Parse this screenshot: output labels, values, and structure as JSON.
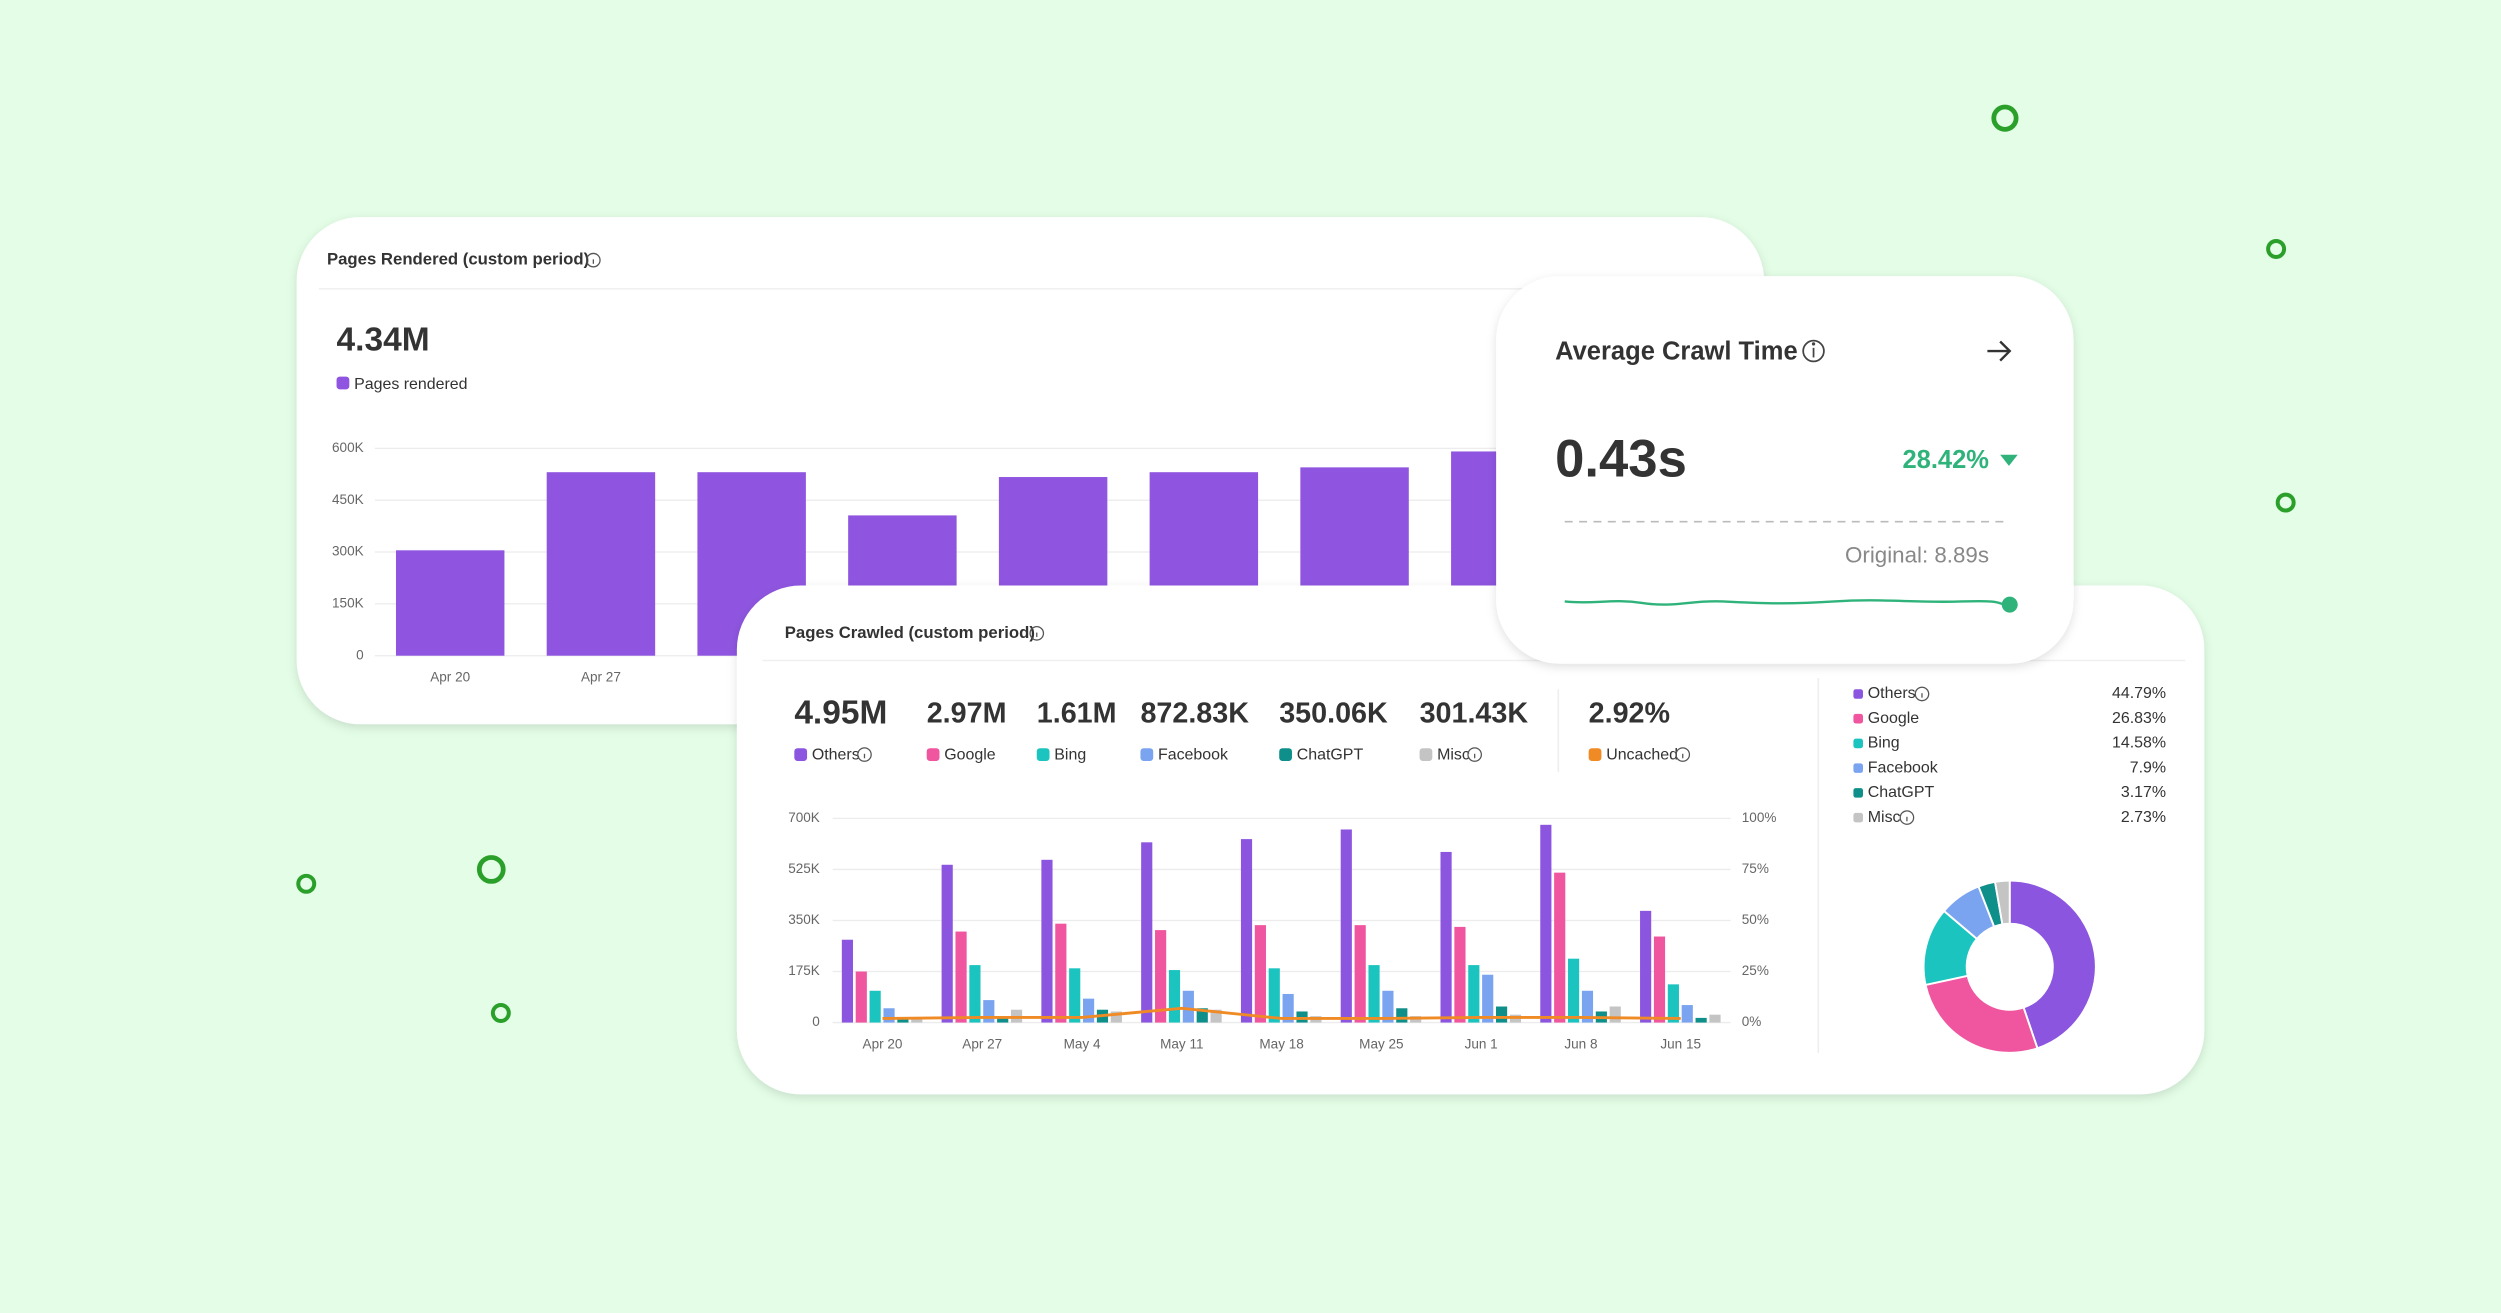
{
  "chart_data": [
    {
      "type": "bar",
      "title": "Pages Rendered (custom period)",
      "total": "4.34M",
      "legend": "Pages rendered",
      "color": "#8f55e0",
      "categories": [
        "Apr 20",
        "Apr 27",
        null,
        null,
        null,
        null,
        null,
        null
      ],
      "values": [
        305000,
        531000,
        531000,
        406000,
        517000,
        531000,
        545000,
        591000
      ],
      "ylim": [
        0,
        600000
      ],
      "yticks": [
        0,
        {
          "value": 150000,
          "label": "150K"
        },
        {
          "value": 300000,
          "label": "300K"
        },
        {
          "value": 450000,
          "label": "450K"
        },
        {
          "value": 600000,
          "label": "600K"
        }
      ],
      "grid": true
    },
    {
      "type": "combo",
      "title": "Pages Crawled (custom period)",
      "categories": [
        "Apr 20",
        "Apr 27",
        "May 4",
        "May 11",
        "May 18",
        "May 25",
        "Jun 1",
        "Jun 8",
        "Jun 15"
      ],
      "series": [
        {
          "name": "Others",
          "total": "4.95M",
          "color": "#8b55e0",
          "values": [
            284000,
            541000,
            558000,
            618000,
            629000,
            662000,
            585000,
            678000,
            383000
          ]
        },
        {
          "name": "Google",
          "total": "2.97M",
          "color": "#f0559f",
          "values": [
            175000,
            312000,
            339000,
            317000,
            334000,
            334000,
            328000,
            514000,
            295000
          ]
        },
        {
          "name": "Bing",
          "total": "1.61M",
          "color": "#1cc4c0",
          "values": [
            109000,
            197000,
            186000,
            180000,
            186000,
            197000,
            197000,
            219000,
            131000
          ]
        },
        {
          "name": "Facebook",
          "total": "872.83K",
          "color": "#7ba4f0",
          "values": [
            49000,
            77000,
            82000,
            109000,
            98000,
            109000,
            164000,
            109000,
            60000
          ]
        },
        {
          "name": "ChatGPT",
          "total": "350.06K",
          "color": "#0e8f8a",
          "values": [
            16000,
            22000,
            44000,
            49000,
            38000,
            49000,
            55000,
            38000,
            16000
          ]
        },
        {
          "name": "Misc",
          "total": "301.43K",
          "color": "#c4c4c4",
          "values": [
            11000,
            44000,
            38000,
            44000,
            22000,
            22000,
            27000,
            55000,
            27000
          ]
        },
        {
          "name": "Uncached",
          "total": "2.92%",
          "color": "#f08a24",
          "axis": "y2",
          "values": [
            2,
            2.5,
            2.5,
            7,
            2,
            2,
            2.5,
            2.5,
            2
          ]
        }
      ],
      "ylim": [
        0,
        700000
      ],
      "yticks": [
        0,
        {
          "value": 175000,
          "label": "175K"
        },
        {
          "value": 350000,
          "label": "350K"
        },
        {
          "value": 525000,
          "label": "525K"
        },
        {
          "value": 700000,
          "label": "700K"
        }
      ],
      "y2lim": [
        0,
        100
      ],
      "y2ticks": [
        {
          "value": 0,
          "label": "0%"
        },
        {
          "value": 25,
          "label": "25%"
        },
        {
          "value": 50,
          "label": "50%"
        },
        {
          "value": 75,
          "label": "75%"
        },
        {
          "value": 100,
          "label": "100%"
        }
      ],
      "grid": true
    },
    {
      "type": "donut",
      "categories": [
        "Others",
        "Google",
        "Bing",
        "Facebook",
        "ChatGPT",
        "Misc"
      ],
      "values": [
        44.79,
        26.83,
        14.58,
        7.9,
        3.17,
        2.73
      ],
      "value_labels": [
        "44.79%",
        "26.83%",
        "14.58%",
        "7.9%",
        "3.17%",
        "2.73%"
      ],
      "colors": [
        "#8b55e0",
        "#f0559f",
        "#1cc4c0",
        "#7ba4f0",
        "#0e8f8a",
        "#c4c4c4"
      ]
    }
  ],
  "crawl_time": {
    "title": "Average Crawl Time",
    "value": "0.43s",
    "change": "28.42%",
    "original": "Original: 8.89s"
  }
}
